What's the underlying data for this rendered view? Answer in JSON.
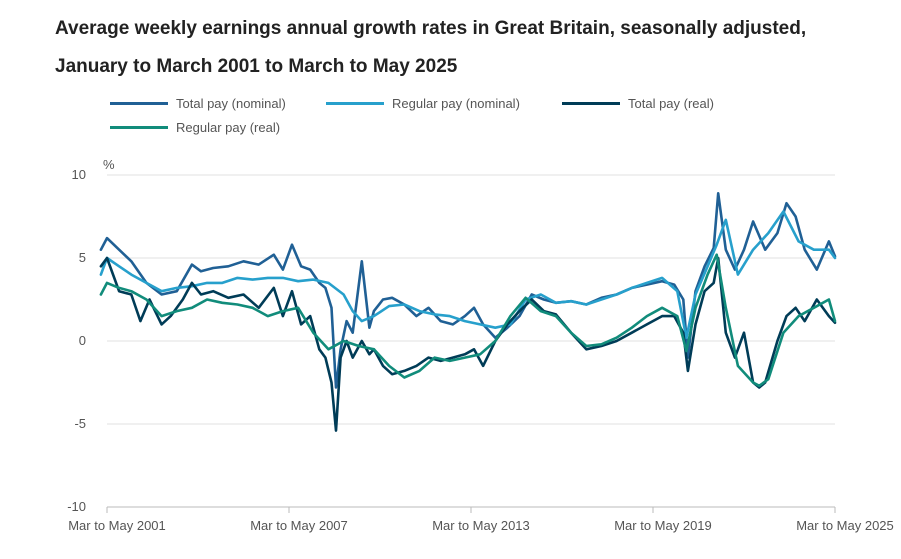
{
  "chart_data": {
    "type": "line",
    "title": "Average weekly earnings annual growth rates in Great Britain, seasonally adjusted, January to March 2001 to March to May 2025",
    "ylabel": "%",
    "ylim": [
      -10,
      10
    ],
    "yticks": [
      10,
      5,
      0,
      -5,
      -10
    ],
    "xlim": [
      2001.2,
      2025.2
    ],
    "xticks": [
      {
        "x": 2001.2,
        "label": "Mar to May 2001"
      },
      {
        "x": 2007.2,
        "label": "Mar to May 2007"
      },
      {
        "x": 2013.2,
        "label": "Mar to May 2013"
      },
      {
        "x": 2019.2,
        "label": "Mar to May 2019"
      },
      {
        "x": 2025.2,
        "label": "Mar to May 2025"
      }
    ],
    "series": [
      {
        "name": "Total pay (nominal)",
        "color": "#206095",
        "x": [
          2001.0,
          2001.2,
          2001.6,
          2002.0,
          2002.5,
          2003.0,
          2003.5,
          2004.0,
          2004.3,
          2004.7,
          2005.2,
          2005.7,
          2006.2,
          2006.7,
          2007.0,
          2007.3,
          2007.6,
          2007.9,
          2008.2,
          2008.4,
          2008.6,
          2008.75,
          2008.9,
          2009.1,
          2009.3,
          2009.6,
          2009.85,
          2010.0,
          2010.3,
          2010.6,
          2011.0,
          2011.4,
          2011.8,
          2012.2,
          2012.6,
          2013.0,
          2013.3,
          2013.6,
          2014.0,
          2014.4,
          2014.8,
          2015.2,
          2015.6,
          2016.0,
          2016.5,
          2017.0,
          2017.5,
          2018.0,
          2018.5,
          2019.0,
          2019.5,
          2019.9,
          2020.2,
          2020.35,
          2020.6,
          2020.9,
          2021.2,
          2021.35,
          2021.6,
          2021.9,
          2022.2,
          2022.5,
          2022.9,
          2023.3,
          2023.6,
          2023.9,
          2024.2,
          2024.6,
          2025.0,
          2025.2
        ],
        "y": [
          5.5,
          6.2,
          5.5,
          4.8,
          3.5,
          2.8,
          3.0,
          4.6,
          4.2,
          4.4,
          4.5,
          4.8,
          4.6,
          5.2,
          4.3,
          5.8,
          4.5,
          4.3,
          3.5,
          3.2,
          2.0,
          -2.8,
          -0.5,
          1.2,
          0.5,
          4.8,
          0.8,
          1.8,
          2.5,
          2.6,
          2.2,
          1.5,
          2.0,
          1.2,
          1.0,
          1.5,
          2.0,
          1.0,
          0.2,
          0.8,
          1.5,
          2.8,
          2.5,
          2.3,
          2.4,
          2.2,
          2.6,
          2.8,
          3.2,
          3.4,
          3.6,
          3.4,
          2.5,
          -1.0,
          3.0,
          4.5,
          5.6,
          8.9,
          5.5,
          4.3,
          5.5,
          7.2,
          5.5,
          6.5,
          8.3,
          7.5,
          5.5,
          4.3,
          6.0,
          5.1
        ]
      },
      {
        "name": "Regular pay (nominal)",
        "color": "#27a0cc",
        "x": [
          2001.0,
          2001.2,
          2001.6,
          2002.0,
          2002.5,
          2003.0,
          2003.5,
          2004.0,
          2004.5,
          2005.0,
          2005.5,
          2006.0,
          2006.5,
          2007.0,
          2007.5,
          2008.0,
          2008.5,
          2009.0,
          2009.3,
          2009.6,
          2010.0,
          2010.5,
          2011.0,
          2011.5,
          2012.0,
          2012.5,
          2013.0,
          2013.5,
          2014.0,
          2014.5,
          2015.0,
          2015.5,
          2016.0,
          2016.5,
          2017.0,
          2017.5,
          2018.0,
          2018.5,
          2019.0,
          2019.5,
          2020.0,
          2020.3,
          2020.6,
          2021.0,
          2021.3,
          2021.6,
          2022.0,
          2022.5,
          2023.0,
          2023.5,
          2024.0,
          2024.5,
          2025.0,
          2025.2
        ],
        "y": [
          4.0,
          5.0,
          4.5,
          4.0,
          3.5,
          3.0,
          3.2,
          3.3,
          3.5,
          3.5,
          3.8,
          3.7,
          3.8,
          3.8,
          3.6,
          3.7,
          3.5,
          2.8,
          1.8,
          1.2,
          1.5,
          2.1,
          2.2,
          1.8,
          1.6,
          1.5,
          1.2,
          1.0,
          0.8,
          1.0,
          2.5,
          2.8,
          2.3,
          2.4,
          2.2,
          2.5,
          2.8,
          3.2,
          3.5,
          3.8,
          3.0,
          0.2,
          2.8,
          4.5,
          5.8,
          7.3,
          4.0,
          5.5,
          6.5,
          7.8,
          6.0,
          5.5,
          5.5,
          5.0
        ]
      },
      {
        "name": "Total pay (real)",
        "color": "#003c57",
        "x": [
          2001.0,
          2001.2,
          2001.6,
          2002.0,
          2002.3,
          2002.6,
          2003.0,
          2003.3,
          2003.7,
          2004.0,
          2004.3,
          2004.7,
          2005.2,
          2005.7,
          2006.2,
          2006.7,
          2007.0,
          2007.3,
          2007.6,
          2007.9,
          2008.2,
          2008.4,
          2008.6,
          2008.75,
          2008.9,
          2009.1,
          2009.3,
          2009.6,
          2009.85,
          2010.0,
          2010.3,
          2010.6,
          2011.0,
          2011.4,
          2011.8,
          2012.2,
          2012.6,
          2013.0,
          2013.3,
          2013.6,
          2014.0,
          2014.4,
          2014.8,
          2015.2,
          2015.6,
          2016.0,
          2016.5,
          2017.0,
          2017.5,
          2018.0,
          2018.5,
          2019.0,
          2019.5,
          2019.9,
          2020.2,
          2020.35,
          2020.6,
          2020.9,
          2021.2,
          2021.35,
          2021.6,
          2021.9,
          2022.2,
          2022.5,
          2022.7,
          2022.9,
          2023.3,
          2023.6,
          2023.9,
          2024.2,
          2024.6,
          2025.0,
          2025.2
        ],
        "y": [
          4.5,
          5.0,
          3.0,
          2.8,
          1.2,
          2.5,
          1.0,
          1.5,
          2.5,
          3.5,
          2.8,
          3.0,
          2.6,
          2.8,
          2.0,
          3.2,
          1.5,
          3.0,
          1.0,
          1.5,
          -0.5,
          -1.0,
          -2.5,
          -5.4,
          -1.0,
          0.0,
          -1.0,
          0.0,
          -0.8,
          -0.5,
          -1.5,
          -2.0,
          -1.8,
          -1.5,
          -1.0,
          -1.2,
          -1.0,
          -0.8,
          -0.5,
          -1.5,
          0.0,
          1.0,
          1.8,
          2.5,
          1.8,
          1.6,
          0.5,
          -0.5,
          -0.3,
          0.0,
          0.5,
          1.0,
          1.5,
          1.5,
          0.5,
          -1.8,
          1.0,
          3.0,
          3.5,
          5.0,
          0.5,
          -1.0,
          0.5,
          -2.5,
          -2.8,
          -2.5,
          0.0,
          1.5,
          2.0,
          1.2,
          2.5,
          1.5,
          1.1
        ]
      },
      {
        "name": "Regular pay (real)",
        "color": "#118c7b",
        "x": [
          2001.0,
          2001.2,
          2001.6,
          2002.0,
          2002.5,
          2003.0,
          2003.5,
          2004.0,
          2004.5,
          2005.0,
          2005.5,
          2006.0,
          2006.5,
          2007.0,
          2007.5,
          2008.0,
          2008.5,
          2009.0,
          2009.5,
          2010.0,
          2010.5,
          2011.0,
          2011.5,
          2012.0,
          2012.5,
          2013.0,
          2013.5,
          2014.0,
          2014.5,
          2015.0,
          2015.5,
          2016.0,
          2016.5,
          2017.0,
          2017.5,
          2018.0,
          2018.5,
          2019.0,
          2019.5,
          2020.0,
          2020.3,
          2020.6,
          2021.0,
          2021.3,
          2021.6,
          2022.0,
          2022.5,
          2022.7,
          2023.0,
          2023.5,
          2024.0,
          2024.5,
          2025.0,
          2025.2
        ],
        "y": [
          2.8,
          3.5,
          3.2,
          3.0,
          2.5,
          1.5,
          1.8,
          2.0,
          2.5,
          2.3,
          2.2,
          2.0,
          1.5,
          1.8,
          2.0,
          0.5,
          -0.5,
          0.0,
          -0.3,
          -0.5,
          -1.5,
          -2.2,
          -1.8,
          -1.0,
          -1.2,
          -1.0,
          -0.8,
          0.0,
          1.5,
          2.6,
          1.8,
          1.5,
          0.5,
          -0.3,
          -0.2,
          0.2,
          0.8,
          1.5,
          2.0,
          1.5,
          -0.6,
          2.0,
          4.0,
          5.2,
          2.0,
          -1.5,
          -2.5,
          -2.7,
          -2.3,
          0.5,
          1.5,
          2.0,
          2.5,
          1.2
        ]
      }
    ]
  }
}
